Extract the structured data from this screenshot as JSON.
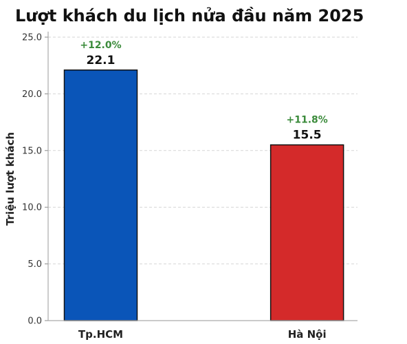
{
  "chart_data": {
    "type": "bar",
    "title": "Lượt khách du lịch nửa đầu năm 2025",
    "xlabel": "",
    "ylabel": "Triệu lượt khách",
    "categories": [
      "Tp.HCM",
      "Hà Nội"
    ],
    "values": [
      22.1,
      15.5
    ],
    "value_labels": [
      "22.1",
      "15.5"
    ],
    "growth_labels": [
      "+12.0%",
      "+11.8%"
    ],
    "bar_colors": [
      "#0a55b8",
      "#d42a2a"
    ],
    "growth_color": "#3b8b3b",
    "ylim": [
      0,
      25
    ],
    "yticks": [
      "0.0",
      "5.0",
      "10.0",
      "15.0",
      "20.0",
      "25.0"
    ],
    "grid": true
  }
}
